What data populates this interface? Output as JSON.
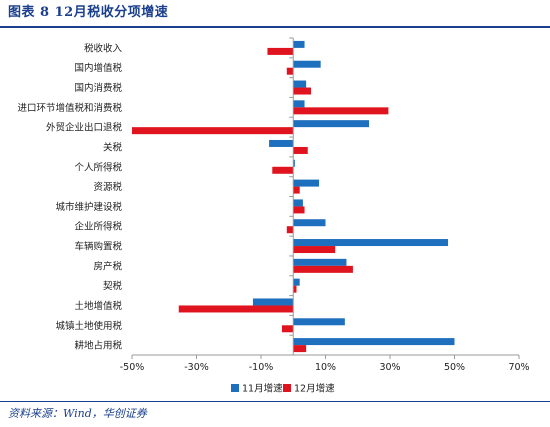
{
  "figure": {
    "title": "图表 8   12月税收分项增速",
    "source": "资料来源：Wind，华创证券"
  },
  "colors": {
    "s11": "#1f6fbf",
    "s12": "#e0141f",
    "axis": "#9a9a9a",
    "rule": "#1a3f8c"
  },
  "chart_data": {
    "type": "bar",
    "orientation": "horizontal",
    "categories": [
      "税收收入",
      "国内增值税",
      "国内消费税",
      "进口环节增值税和消费税",
      "外贸企业出口退税",
      "关税",
      "个人所得税",
      "资源税",
      "城市维护建设税",
      "企业所得税",
      "车辆购置税",
      "房产税",
      "契税",
      "土地增值税",
      "城镇土地使用税",
      "耕地占用税"
    ],
    "series": [
      {
        "name": "11月增速",
        "color": "#1f6fbf",
        "values": [
          3.5,
          8.5,
          4,
          3.5,
          23.5,
          -7.5,
          0.5,
          8,
          3,
          10,
          48,
          16.5,
          2,
          -12.5,
          16,
          50
        ]
      },
      {
        "name": "12月增速",
        "color": "#e0141f",
        "values": [
          -8,
          -2,
          5.5,
          29.5,
          -50,
          4.5,
          -6.5,
          2,
          3.5,
          -2,
          13,
          18.5,
          1,
          -35.5,
          -3.5,
          4
        ]
      }
    ],
    "xlim": [
      -50,
      70
    ],
    "xticks": [
      -50,
      -30,
      -10,
      10,
      30,
      50,
      70
    ],
    "xtick_labels": [
      "-50%",
      "-30%",
      "-10%",
      "10%",
      "30%",
      "50%",
      "70%"
    ],
    "grid": false,
    "legend_position": "bottom"
  }
}
